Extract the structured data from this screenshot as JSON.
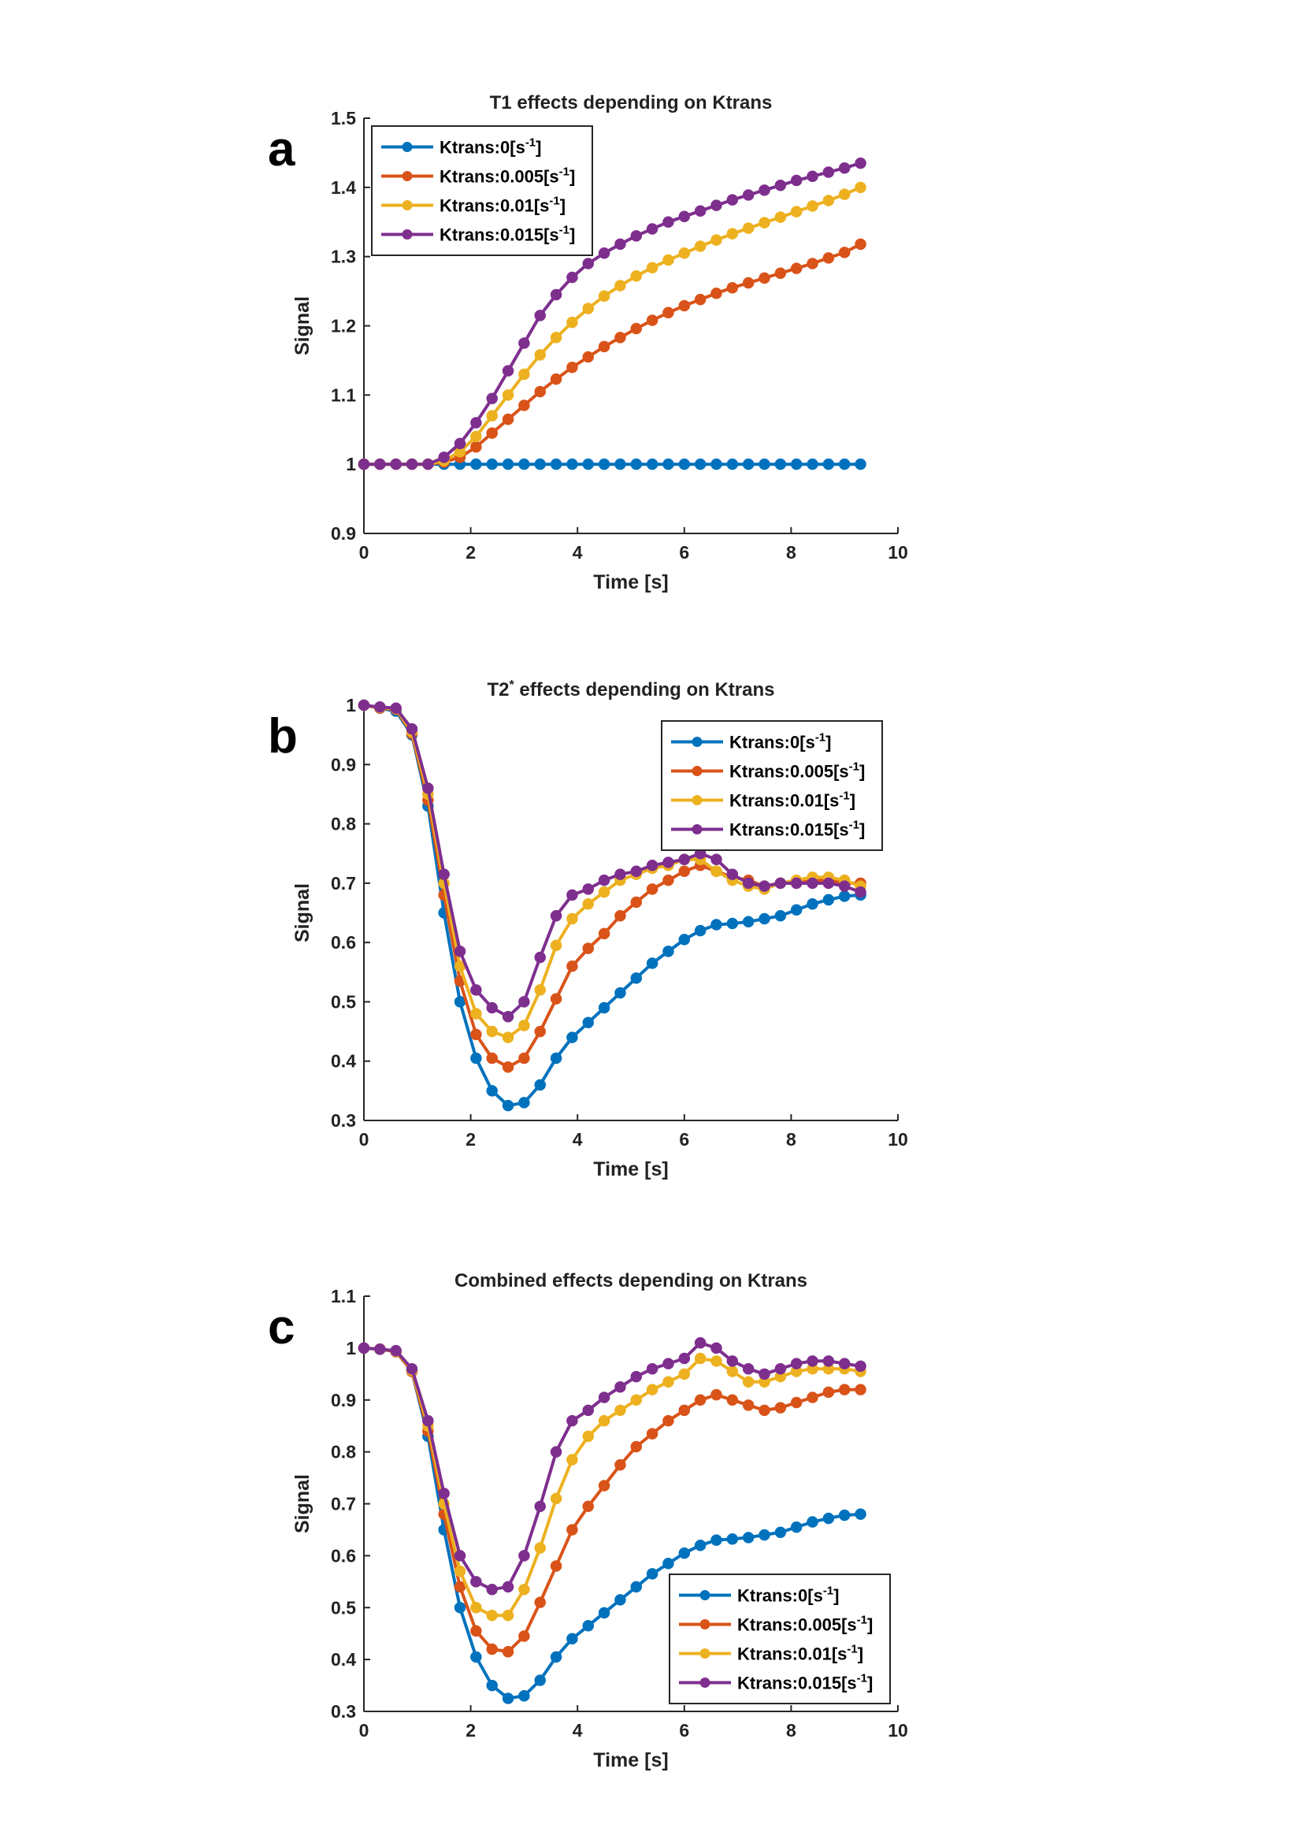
{
  "chart_data": [
    {
      "panel_label": "a",
      "type": "line",
      "title": "T1 effects depending on Ktrans",
      "title_sup": "",
      "title_rest": "",
      "xlabel": "Time [s]",
      "ylabel": "Signal",
      "xlim": [
        0,
        10
      ],
      "ylim": [
        0.9,
        1.5
      ],
      "xticks": [
        "0",
        "2",
        "4",
        "6",
        "8",
        "10"
      ],
      "yticks": [
        "0.9",
        "1",
        "1.1",
        "1.2",
        "1.3",
        "1.4",
        "1.5"
      ],
      "legend_position": "top-left",
      "x_start": 0,
      "x_step": 0.3,
      "series": [
        {
          "name": "Ktrans:0[s",
          "sup": "-1",
          "end": "]",
          "color": "#0072BD",
          "values": [
            1,
            1,
            1,
            1,
            1,
            1,
            1,
            1,
            1,
            1,
            1,
            1,
            1,
            1,
            1,
            1,
            1,
            1,
            1,
            1,
            1,
            1,
            1,
            1,
            1,
            1,
            1,
            1,
            1,
            1,
            1,
            1
          ]
        },
        {
          "name": "Ktrans:0.005[s",
          "sup": "-1",
          "end": "]",
          "color": "#D95319",
          "values": [
            1,
            1,
            1,
            1,
            1,
            1.003,
            1.01,
            1.025,
            1.045,
            1.065,
            1.085,
            1.105,
            1.123,
            1.14,
            1.155,
            1.17,
            1.183,
            1.196,
            1.208,
            1.219,
            1.229,
            1.238,
            1.247,
            1.255,
            1.262,
            1.269,
            1.276,
            1.283,
            1.29,
            1.298,
            1.306,
            1.318
          ]
        },
        {
          "name": "Ktrans:0.01[s",
          "sup": "-1",
          "end": "]",
          "color": "#EDB120",
          "values": [
            1,
            1,
            1,
            1,
            1,
            1.005,
            1.018,
            1.04,
            1.07,
            1.1,
            1.13,
            1.158,
            1.183,
            1.205,
            1.225,
            1.243,
            1.258,
            1.272,
            1.284,
            1.295,
            1.305,
            1.315,
            1.324,
            1.333,
            1.341,
            1.349,
            1.357,
            1.365,
            1.373,
            1.381,
            1.39,
            1.4
          ]
        },
        {
          "name": "Ktrans:0.015[s",
          "sup": "-1",
          "end": "]",
          "color": "#7E2F8E",
          "values": [
            1,
            1,
            1,
            1,
            1,
            1.01,
            1.03,
            1.06,
            1.095,
            1.135,
            1.175,
            1.215,
            1.245,
            1.27,
            1.29,
            1.305,
            1.318,
            1.33,
            1.34,
            1.35,
            1.358,
            1.366,
            1.374,
            1.382,
            1.389,
            1.396,
            1.403,
            1.41,
            1.416,
            1.422,
            1.428,
            1.435
          ]
        }
      ]
    },
    {
      "panel_label": "b",
      "type": "line",
      "title": "T2",
      "title_sup": "*",
      "title_rest": " effects depending on Ktrans",
      "xlabel": "Time [s]",
      "ylabel": "Signal",
      "xlim": [
        0,
        10
      ],
      "ylim": [
        0.3,
        1.0
      ],
      "xticks": [
        "0",
        "2",
        "4",
        "6",
        "8",
        "10"
      ],
      "yticks": [
        "0.3",
        "0.4",
        "0.5",
        "0.6",
        "0.7",
        "0.8",
        "0.9",
        "1"
      ],
      "legend_position": "top-right",
      "x_start": 0,
      "x_step": 0.3,
      "series": [
        {
          "name": "Ktrans:0[s",
          "sup": "-1",
          "end": "]",
          "color": "#0072BD",
          "values": [
            1.0,
            0.995,
            0.99,
            0.95,
            0.83,
            0.65,
            0.5,
            0.405,
            0.35,
            0.325,
            0.33,
            0.36,
            0.405,
            0.44,
            0.465,
            0.49,
            0.515,
            0.54,
            0.565,
            0.585,
            0.605,
            0.62,
            0.63,
            0.632,
            0.635,
            0.64,
            0.645,
            0.655,
            0.665,
            0.672,
            0.678,
            0.68
          ]
        },
        {
          "name": "Ktrans:0.005[s",
          "sup": "-1",
          "end": "]",
          "color": "#D95319",
          "values": [
            1.0,
            0.995,
            0.993,
            0.952,
            0.84,
            0.68,
            0.535,
            0.445,
            0.405,
            0.39,
            0.405,
            0.45,
            0.505,
            0.56,
            0.59,
            0.615,
            0.645,
            0.668,
            0.69,
            0.705,
            0.72,
            0.73,
            0.72,
            0.71,
            0.705,
            0.695,
            0.7,
            0.7,
            0.705,
            0.705,
            0.7,
            0.7
          ]
        },
        {
          "name": "Ktrans:0.01[s",
          "sup": "-1",
          "end": "]",
          "color": "#EDB120",
          "values": [
            1.0,
            0.996,
            0.994,
            0.955,
            0.85,
            0.7,
            0.56,
            0.48,
            0.45,
            0.44,
            0.46,
            0.52,
            0.595,
            0.64,
            0.665,
            0.685,
            0.705,
            0.715,
            0.725,
            0.73,
            0.74,
            0.74,
            0.72,
            0.705,
            0.695,
            0.69,
            0.7,
            0.705,
            0.71,
            0.71,
            0.705,
            0.695
          ]
        },
        {
          "name": "Ktrans:0.015[s",
          "sup": "-1",
          "end": "]",
          "color": "#7E2F8E",
          "values": [
            1.0,
            0.997,
            0.995,
            0.96,
            0.86,
            0.715,
            0.585,
            0.52,
            0.49,
            0.475,
            0.5,
            0.575,
            0.645,
            0.68,
            0.69,
            0.705,
            0.715,
            0.72,
            0.73,
            0.735,
            0.74,
            0.75,
            0.74,
            0.715,
            0.7,
            0.695,
            0.7,
            0.7,
            0.7,
            0.7,
            0.695,
            0.685
          ]
        }
      ]
    },
    {
      "panel_label": "c",
      "type": "line",
      "title": "Combined effects depending on Ktrans",
      "title_sup": "",
      "title_rest": "",
      "xlabel": "Time [s]",
      "ylabel": "Signal",
      "xlim": [
        0,
        10
      ],
      "ylim": [
        0.3,
        1.1
      ],
      "xticks": [
        "0",
        "2",
        "4",
        "6",
        "8",
        "10"
      ],
      "yticks": [
        "0.3",
        "0.4",
        "0.5",
        "0.6",
        "0.7",
        "0.8",
        "0.9",
        "1",
        "1.1"
      ],
      "legend_position": "bottom-right",
      "x_start": 0,
      "x_step": 0.3,
      "series": [
        {
          "name": "Ktrans:0[s",
          "sup": "-1",
          "end": "]",
          "color": "#0072BD",
          "values": [
            1.0,
            0.998,
            0.993,
            0.955,
            0.83,
            0.65,
            0.5,
            0.405,
            0.35,
            0.325,
            0.33,
            0.36,
            0.405,
            0.44,
            0.465,
            0.49,
            0.515,
            0.54,
            0.565,
            0.585,
            0.605,
            0.62,
            0.63,
            0.632,
            0.635,
            0.64,
            0.645,
            0.655,
            0.665,
            0.672,
            0.678,
            0.68
          ]
        },
        {
          "name": "Ktrans:0.005[s",
          "sup": "-1",
          "end": "]",
          "color": "#D95319",
          "values": [
            1.0,
            0.998,
            0.993,
            0.955,
            0.84,
            0.68,
            0.54,
            0.455,
            0.42,
            0.415,
            0.445,
            0.51,
            0.58,
            0.65,
            0.695,
            0.735,
            0.775,
            0.81,
            0.835,
            0.86,
            0.88,
            0.9,
            0.91,
            0.9,
            0.89,
            0.88,
            0.885,
            0.895,
            0.905,
            0.915,
            0.92,
            0.92
          ]
        },
        {
          "name": "Ktrans:0.01[s",
          "sup": "-1",
          "end": "]",
          "color": "#EDB120",
          "values": [
            1.0,
            0.998,
            0.994,
            0.957,
            0.85,
            0.7,
            0.57,
            0.5,
            0.485,
            0.485,
            0.535,
            0.615,
            0.71,
            0.785,
            0.83,
            0.86,
            0.88,
            0.9,
            0.92,
            0.935,
            0.95,
            0.98,
            0.975,
            0.955,
            0.935,
            0.935,
            0.945,
            0.955,
            0.96,
            0.96,
            0.96,
            0.955
          ]
        },
        {
          "name": "Ktrans:0.015[s",
          "sup": "-1",
          "end": "]",
          "color": "#7E2F8E",
          "values": [
            1.0,
            0.998,
            0.995,
            0.96,
            0.86,
            0.72,
            0.6,
            0.55,
            0.535,
            0.54,
            0.6,
            0.695,
            0.8,
            0.86,
            0.88,
            0.905,
            0.925,
            0.945,
            0.96,
            0.97,
            0.98,
            1.01,
            1.0,
            0.975,
            0.96,
            0.95,
            0.96,
            0.97,
            0.975,
            0.975,
            0.97,
            0.965
          ]
        }
      ]
    }
  ]
}
